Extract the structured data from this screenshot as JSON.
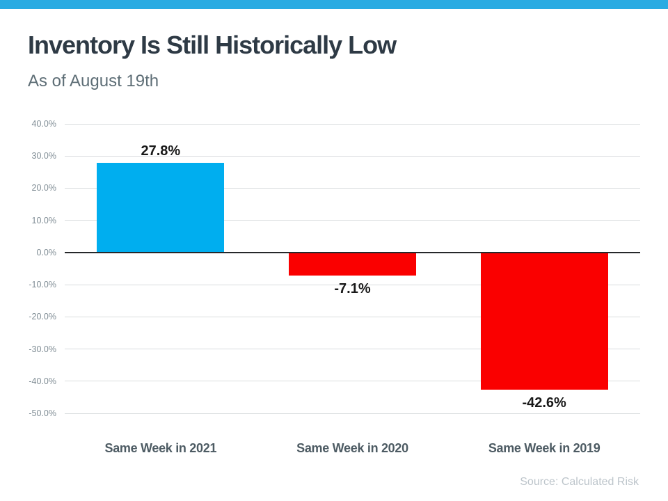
{
  "header": {
    "title": "Inventory Is Still Historically Low",
    "subtitle": "As of August 19th"
  },
  "footer": {
    "source": "Source: Calculated Risk"
  },
  "colors": {
    "accent_strip": "#29ABE2",
    "positive_bar": "#00AEEF",
    "negative_bar": "#FA0000",
    "gridline": "#D9DCDE",
    "zero_line": "#26282A",
    "title_text": "#2E3A45",
    "subtitle_text": "#5E6E76",
    "tick_text": "#7F8C94",
    "category_text": "#4D5B63",
    "source_text": "#BDC5CB"
  },
  "chart_data": {
    "type": "bar",
    "title": "Inventory Is Still Historically Low",
    "subtitle": "As of August 19th",
    "categories": [
      "Same Week in 2021",
      "Same Week in 2020",
      "Same Week in 2019"
    ],
    "values": [
      27.8,
      -7.1,
      -42.6
    ],
    "data_labels": [
      "27.8%",
      "-7.1%",
      "-42.6%"
    ],
    "bar_colors": [
      "#00AEEF",
      "#FA0000",
      "#FA0000"
    ],
    "xlabel": "",
    "ylabel": "",
    "ylim": [
      -50,
      40
    ],
    "ytick_step": 10,
    "ytick_labels": [
      "40.0%",
      "30.0%",
      "20.0%",
      "10.0%",
      "0.0%",
      "-10.0%",
      "-20.0%",
      "-30.0%",
      "-40.0%",
      "-50.0%"
    ],
    "grid": true,
    "legend": false,
    "source": "Source: Calculated Risk"
  }
}
